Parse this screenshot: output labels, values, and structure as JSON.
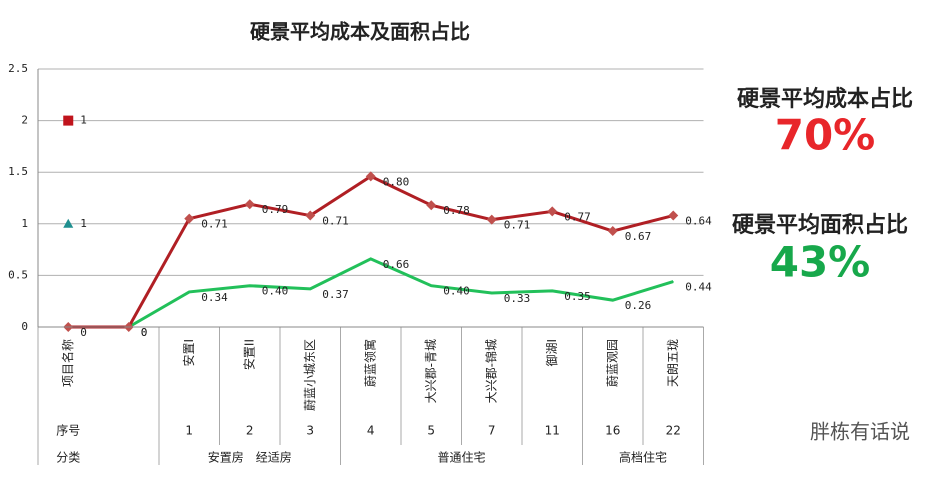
{
  "chart_data": {
    "type": "line",
    "title": "硬景平均成本及面积占比",
    "stacked": true,
    "grid": true,
    "categories": [
      "项目名称",
      null,
      "安置I",
      "安置II",
      "蔚蓝小城东区",
      "蔚蓝领寓",
      "大兴郡-青城",
      "大兴郡-锦城",
      "御湖I",
      "蔚蓝观园",
      "天朗五珑"
    ],
    "ylim": [
      0,
      2.5
    ],
    "yticks": [
      0,
      0.5,
      1,
      1.5,
      2,
      2.5
    ],
    "series": [
      {
        "color": "#22c05a",
        "marker": "none",
        "line": true,
        "values": [
          null,
          0,
          0.34,
          0.4,
          0.37,
          0.66,
          0.4,
          0.33,
          0.35,
          0.26,
          0.44
        ],
        "value_labels": [
          null,
          "0",
          "0.34",
          "0.40",
          "0.37",
          "0.66",
          "0.40",
          "0.33",
          "0.35",
          "0.26",
          "0.44"
        ]
      },
      {
        "color": "#b01f24",
        "marker": "diamond",
        "marker_color": "#c0504d",
        "line": true,
        "values": [
          0,
          0,
          0.71,
          0.79,
          0.71,
          0.8,
          0.78,
          0.71,
          0.77,
          0.67,
          0.64
        ],
        "value_labels": [
          "0",
          "0",
          "0.71",
          "0.79",
          "0.71",
          "0.80",
          "0.78",
          "0.71",
          "0.77",
          "0.67",
          "0.64"
        ]
      },
      {
        "color": "#1f8f8f",
        "marker": "triangle",
        "line": false,
        "values": [
          1,
          null,
          null,
          null,
          null,
          null,
          null,
          null,
          null,
          null,
          null
        ]
      },
      {
        "color": "#c0141c",
        "marker": "square",
        "line": false,
        "values": [
          1,
          null,
          null,
          null,
          null,
          null,
          null,
          null,
          null,
          null,
          null
        ]
      }
    ]
  },
  "table": {
    "row_headers": [
      "序号",
      "分类"
    ],
    "serials": [
      1,
      2,
      3,
      4,
      5,
      7,
      11,
      16,
      22
    ],
    "groups": [
      "安置房　经适房",
      "普通住宅",
      "高档住宅"
    ]
  },
  "side": {
    "cost_label": "硬景平均成本占比",
    "cost_value": "70%",
    "area_label": "硬景平均面积占比",
    "area_value": "43%"
  },
  "watermark": "胖栋有话说"
}
